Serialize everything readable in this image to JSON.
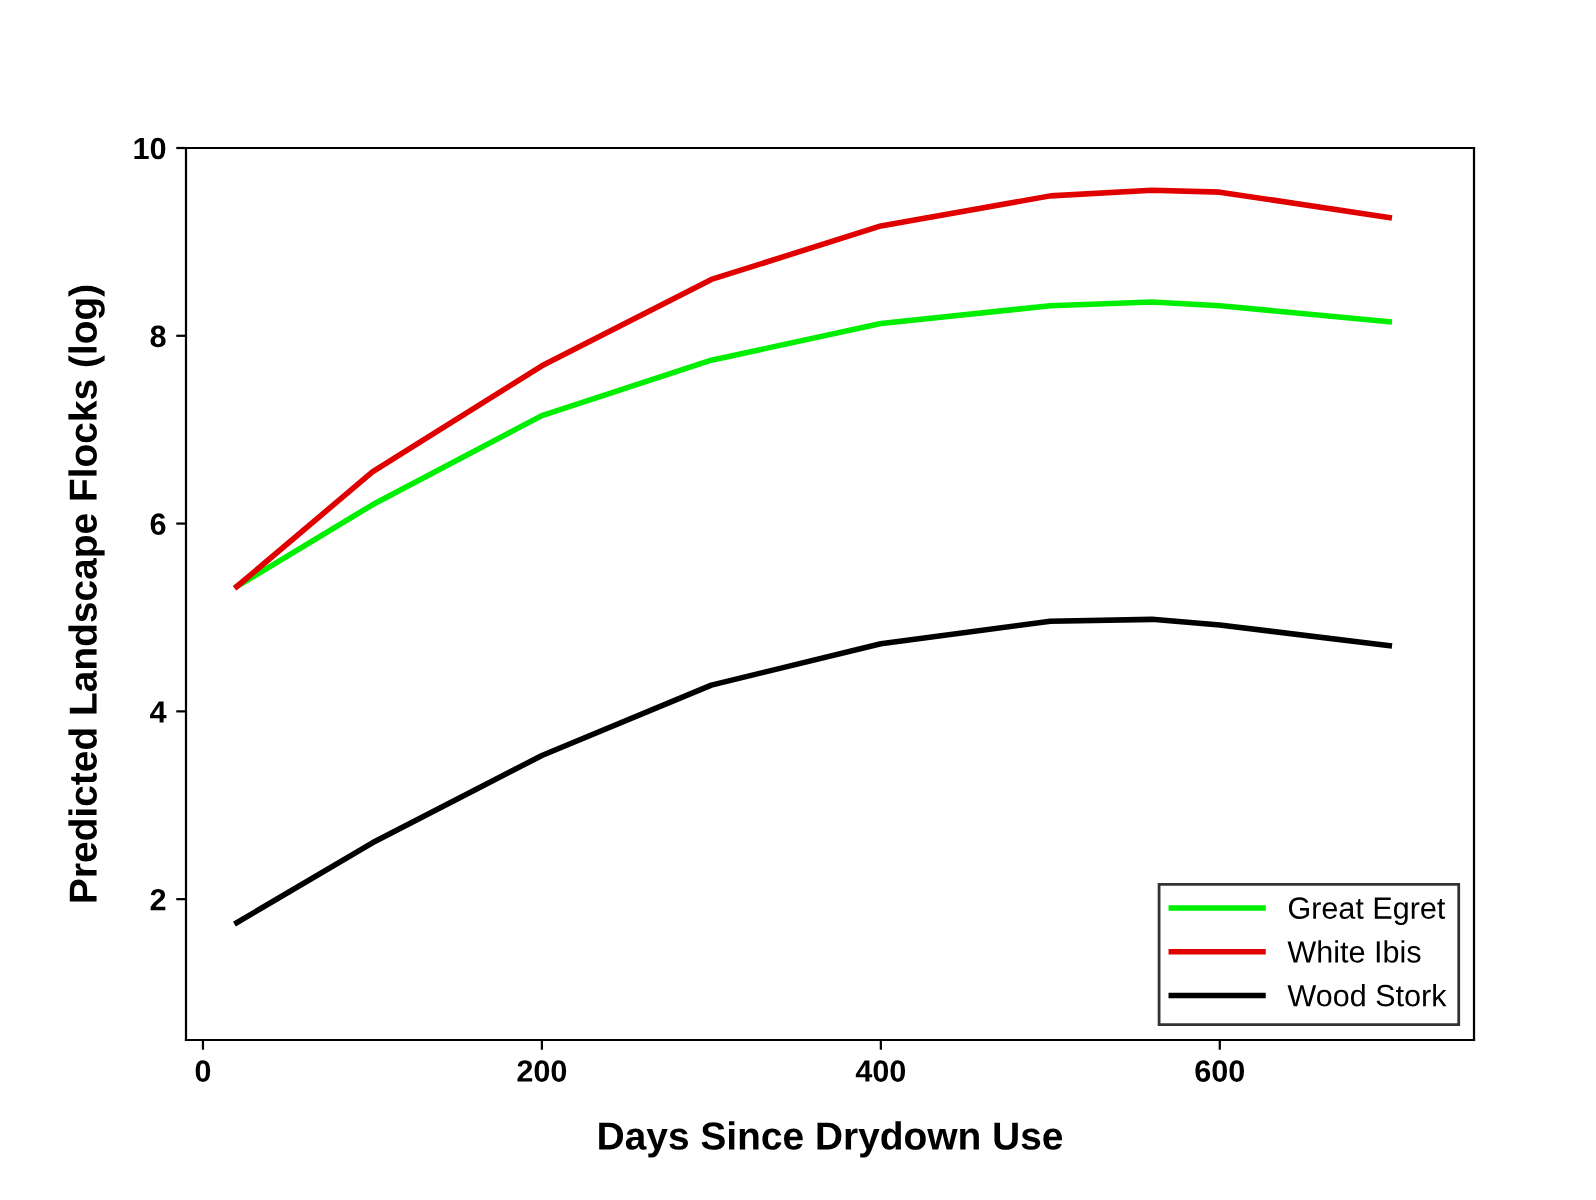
{
  "chart_data": {
    "type": "line",
    "xlabel": "Days Since Drydown Use",
    "ylabel": "Predicted Landscape Flocks (log)",
    "x": [
      20,
      100,
      200,
      300,
      400,
      500,
      560,
      600,
      700
    ],
    "series": [
      {
        "name": "Great Egret",
        "color": "#00ee00",
        "values": [
          5.33,
          6.2,
          7.15,
          7.74,
          8.13,
          8.32,
          8.36,
          8.32,
          8.15
        ]
      },
      {
        "name": "White Ibis",
        "color": "#e00000",
        "values": [
          5.33,
          6.55,
          7.68,
          8.6,
          9.17,
          9.49,
          9.55,
          9.53,
          9.26
        ]
      },
      {
        "name": "Wood Stork",
        "color": "#000000",
        "values": [
          1.75,
          2.6,
          3.53,
          4.28,
          4.72,
          4.96,
          4.98,
          4.92,
          4.7
        ]
      }
    ],
    "xlim": [
      -10,
      750
    ],
    "ylim": [
      0.5,
      10
    ],
    "xticks": [
      0,
      200,
      400,
      600
    ],
    "yticks": [
      2,
      4,
      6,
      8,
      10
    ],
    "legend": "bottom right",
    "grid": false,
    "marker": "none",
    "line_style": "solid"
  }
}
